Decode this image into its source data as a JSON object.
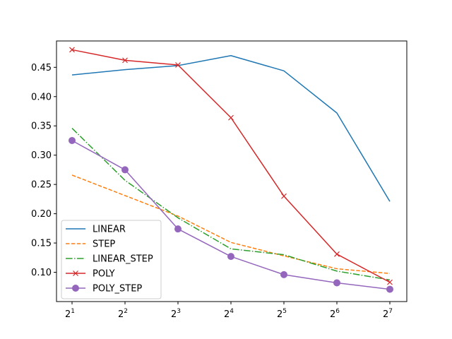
{
  "chart_data": {
    "type": "line",
    "title": "",
    "xlabel": "",
    "ylabel": "",
    "x_scale": "log2",
    "x": [
      2,
      4,
      8,
      16,
      32,
      64,
      128
    ],
    "x_tick_labels": [
      {
        "base": "2",
        "exp": "1"
      },
      {
        "base": "2",
        "exp": "2"
      },
      {
        "base": "2",
        "exp": "3"
      },
      {
        "base": "2",
        "exp": "4"
      },
      {
        "base": "2",
        "exp": "5"
      },
      {
        "base": "2",
        "exp": "6"
      },
      {
        "base": "2",
        "exp": "7"
      }
    ],
    "y_ticks": [
      "0.10",
      "0.15",
      "0.20",
      "0.25",
      "0.30",
      "0.35",
      "0.40",
      "0.45"
    ],
    "y_tick_values": [
      0.1,
      0.15,
      0.2,
      0.25,
      0.3,
      0.35,
      0.4,
      0.45
    ],
    "ylim": [
      0.05,
      0.495
    ],
    "legend_position": "lower-left",
    "grid": false,
    "series": [
      {
        "name": "LINEAR",
        "color": "#1f77b4",
        "dash": "solid",
        "marker": "none",
        "values": [
          0.437,
          0.446,
          0.453,
          0.47,
          0.444,
          0.372,
          0.221
        ]
      },
      {
        "name": "STEP",
        "color": "#ff7f0e",
        "dash": "dashed",
        "marker": "none",
        "values": [
          0.266,
          0.231,
          0.196,
          0.151,
          0.128,
          0.106,
          0.098
        ]
      },
      {
        "name": "LINEAR_STEP",
        "color": "#2ca02c",
        "dash": "dashdot",
        "marker": "none",
        "values": [
          0.346,
          0.257,
          0.193,
          0.14,
          0.13,
          0.102,
          0.087
        ]
      },
      {
        "name": "POLY",
        "color": "#d62728",
        "dash": "solid",
        "marker": "x",
        "values": [
          0.48,
          0.462,
          0.454,
          0.364,
          0.23,
          0.131,
          0.083
        ]
      },
      {
        "name": "POLY_STEP",
        "color": "#9467bd",
        "dash": "solid",
        "marker": "o",
        "values": [
          0.325,
          0.275,
          0.174,
          0.127,
          0.096,
          0.082,
          0.071
        ]
      }
    ]
  }
}
